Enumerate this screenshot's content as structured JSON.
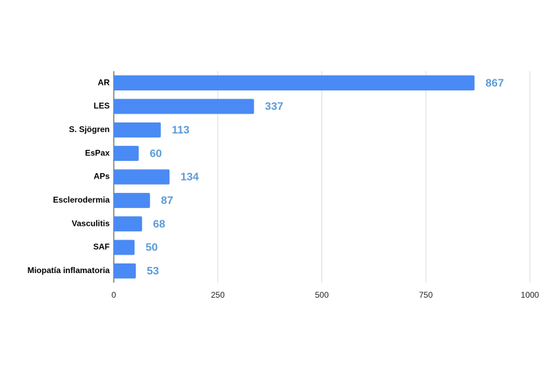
{
  "chart_data": {
    "type": "bar",
    "orientation": "horizontal",
    "categories": [
      "AR",
      "LES",
      "S. Sjögren",
      "EsPax",
      "APs",
      "Esclerodermia",
      "Vasculitis",
      "SAF",
      "Miopatía inflamatoria"
    ],
    "values": [
      867,
      337,
      113,
      60,
      134,
      87,
      68,
      50,
      53
    ],
    "color": "#4a8af4",
    "label_color": "#5b9bd5",
    "xlim": [
      0,
      1000
    ],
    "xticks": [
      0,
      250,
      500,
      750,
      1000
    ],
    "grid": true
  }
}
